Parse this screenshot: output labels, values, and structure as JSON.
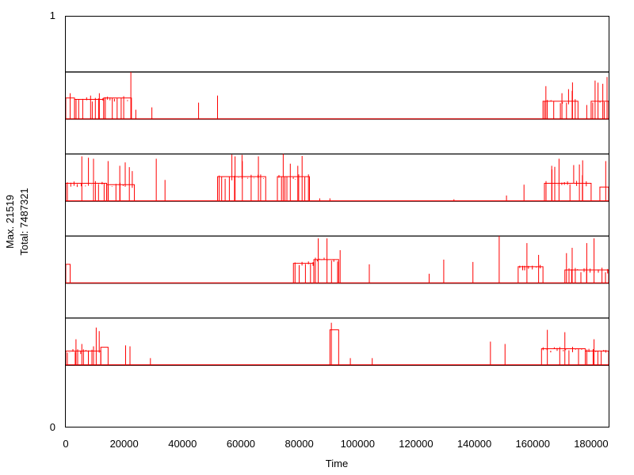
{
  "chart_data": {
    "type": "line",
    "xlabel": "Time",
    "ylabel_lines": [
      "Max. 21519",
      "Total: 7487321"
    ],
    "xlim": [
      0,
      186000
    ],
    "ylim": [
      0,
      1
    ],
    "y_ticks": [
      {
        "value": 1,
        "label": "1"
      },
      {
        "value": 0,
        "label": "0"
      }
    ],
    "x_ticks": [
      {
        "value": 0,
        "label": "0"
      },
      {
        "value": 20000,
        "label": "20000"
      },
      {
        "value": 40000,
        "label": "40000"
      },
      {
        "value": 60000,
        "label": "60000"
      },
      {
        "value": 80000,
        "label": "80000"
      },
      {
        "value": 100000,
        "label": "100000"
      },
      {
        "value": 120000,
        "label": "120000"
      },
      {
        "value": 140000,
        "label": "140000"
      },
      {
        "value": 160000,
        "label": "160000"
      },
      {
        "value": 180000,
        "label": "180000"
      }
    ],
    "line_color": "#ff0000",
    "band_color": "#000000",
    "lanes": [
      {
        "bottom": 0.75,
        "top": 0.865,
        "segments": [
          {
            "x0": 0,
            "x1": 3000,
            "level": 0.45
          },
          {
            "x0": 3000,
            "x1": 13000,
            "level": 0.42,
            "dense": true
          },
          {
            "x0": 13000,
            "x1": 22500,
            "level": 0.45,
            "dense": true
          },
          {
            "x0": 163500,
            "x1": 175500,
            "level": 0.38,
            "dense": true
          },
          {
            "x0": 180000,
            "x1": 186000,
            "level": 0.38,
            "dense": true
          }
        ],
        "spikes": [
          {
            "x": 1500,
            "h": 0.55
          },
          {
            "x": 8500,
            "h": 0.5
          },
          {
            "x": 11500,
            "h": 0.55
          },
          {
            "x": 22300,
            "h": 1.0
          },
          {
            "x": 24000,
            "h": 0.2
          },
          {
            "x": 29500,
            "h": 0.25
          },
          {
            "x": 45500,
            "h": 0.35
          },
          {
            "x": 52000,
            "h": 0.5
          },
          {
            "x": 164500,
            "h": 0.7
          },
          {
            "x": 170000,
            "h": 0.55
          },
          {
            "x": 173500,
            "h": 0.6
          },
          {
            "x": 178500,
            "h": 0.3
          },
          {
            "x": 184000,
            "h": 0.75
          }
        ]
      },
      {
        "bottom": 0.55,
        "top": 0.665,
        "segments": [
          {
            "x0": 0,
            "x1": 14000,
            "level": 0.38,
            "dense": true
          },
          {
            "x0": 14000,
            "x1": 23500,
            "level": 0.35,
            "dense": true
          },
          {
            "x0": 52000,
            "x1": 68500,
            "level": 0.52,
            "dense": true
          },
          {
            "x0": 72500,
            "x1": 83500,
            "level": 0.52,
            "dense": true
          },
          {
            "x0": 164000,
            "x1": 180000,
            "level": 0.38,
            "dense": true
          },
          {
            "x0": 183000,
            "x1": 186000,
            "level": 0.3
          }
        ],
        "spikes": [
          {
            "x": 5500,
            "h": 0.95
          },
          {
            "x": 9500,
            "h": 0.9
          },
          {
            "x": 14500,
            "h": 0.85
          },
          {
            "x": 18500,
            "h": 0.75
          },
          {
            "x": 31000,
            "h": 0.9
          },
          {
            "x": 34000,
            "h": 0.45
          },
          {
            "x": 58000,
            "h": 0.95
          },
          {
            "x": 60500,
            "h": 0.85
          },
          {
            "x": 66000,
            "h": 0.95
          },
          {
            "x": 74500,
            "h": 1.0
          },
          {
            "x": 79500,
            "h": 0.75
          },
          {
            "x": 87000,
            "h": 0.06
          },
          {
            "x": 90500,
            "h": 0.06
          },
          {
            "x": 133000,
            "h": 0.04
          },
          {
            "x": 151000,
            "h": 0.12
          },
          {
            "x": 157000,
            "h": 0.35
          },
          {
            "x": 166500,
            "h": 0.75
          },
          {
            "x": 169000,
            "h": 0.9
          },
          {
            "x": 177000,
            "h": 0.55
          },
          {
            "x": 185000,
            "h": 0.85
          }
        ]
      },
      {
        "bottom": 0.35,
        "top": 0.465,
        "segments": [
          {
            "x0": 0,
            "x1": 1500,
            "level": 0.4
          },
          {
            "x0": 78000,
            "x1": 85000,
            "level": 0.42,
            "dense": true
          },
          {
            "x0": 85000,
            "x1": 93500,
            "level": 0.5,
            "dense": true
          },
          {
            "x0": 155000,
            "x1": 163500,
            "level": 0.35,
            "dense": true
          },
          {
            "x0": 171000,
            "x1": 186000,
            "level": 0.28,
            "dense": true
          }
        ],
        "spikes": [
          {
            "x": 86500,
            "h": 0.95
          },
          {
            "x": 89500,
            "h": 0.95
          },
          {
            "x": 94000,
            "h": 0.7
          },
          {
            "x": 104000,
            "h": 0.4
          },
          {
            "x": 124500,
            "h": 0.2
          },
          {
            "x": 129500,
            "h": 0.5
          },
          {
            "x": 139500,
            "h": 0.45
          },
          {
            "x": 148500,
            "h": 1.0
          },
          {
            "x": 158000,
            "h": 0.85
          },
          {
            "x": 162000,
            "h": 0.6
          },
          {
            "x": 173500,
            "h": 0.75
          },
          {
            "x": 178500,
            "h": 0.85
          },
          {
            "x": 181000,
            "h": 0.95
          }
        ]
      },
      {
        "bottom": 0.15,
        "top": 0.265,
        "segments": [
          {
            "x0": 0,
            "x1": 12000,
            "level": 0.3,
            "dense": true
          },
          {
            "x0": 12000,
            "x1": 14500,
            "level": 0.38
          },
          {
            "x0": 90500,
            "x1": 93500,
            "level": 0.75
          },
          {
            "x0": 163000,
            "x1": 178000,
            "level": 0.35,
            "dense": true
          },
          {
            "x0": 178000,
            "x1": 186000,
            "level": 0.3,
            "dense": true
          }
        ],
        "spikes": [
          {
            "x": 3500,
            "h": 0.55
          },
          {
            "x": 5500,
            "h": 0.45
          },
          {
            "x": 9500,
            "h": 0.4
          },
          {
            "x": 20500,
            "h": 0.42
          },
          {
            "x": 22000,
            "h": 0.4
          },
          {
            "x": 29000,
            "h": 0.15
          },
          {
            "x": 91000,
            "h": 0.9
          },
          {
            "x": 97500,
            "h": 0.15
          },
          {
            "x": 105000,
            "h": 0.15
          },
          {
            "x": 145500,
            "h": 0.5
          },
          {
            "x": 150500,
            "h": 0.45
          },
          {
            "x": 165000,
            "h": 0.75
          },
          {
            "x": 171000,
            "h": 0.7
          },
          {
            "x": 181000,
            "h": 0.55
          }
        ]
      }
    ]
  }
}
